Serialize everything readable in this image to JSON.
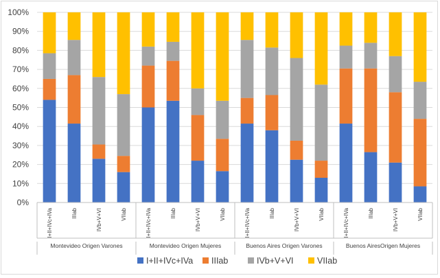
{
  "chart_data": {
    "type": "bar",
    "stacked": "percent",
    "title": "",
    "xlabel": "",
    "ylabel": "",
    "ylim": [
      0,
      100
    ],
    "y_ticks": [
      "0%",
      "10%",
      "20%",
      "30%",
      "40%",
      "50%",
      "60%",
      "70%",
      "80%",
      "90%",
      "100%"
    ],
    "groups": [
      {
        "name": "Montevideo Origen Varones",
        "categories": [
          "I+II+IVc+IVa",
          "IIIab",
          "IVb+V+VI",
          "VIIab"
        ]
      },
      {
        "name": "Montevideo Origen Mujeres",
        "categories": [
          "I+II+IVc+IVa",
          "IIIab",
          "IVb+V+VI",
          "VIIab"
        ]
      },
      {
        "name": "Buenos Aires Origen Varones",
        "categories": [
          "I+II+IVc+IVa",
          "IIIab",
          "IVb+V+VI",
          "VIIab"
        ]
      },
      {
        "name": "Buenos AiresOrigen Mujeres",
        "categories": [
          "I+II+IVc+IVa",
          "IIIab",
          "IVb+V+VI",
          "VIIab"
        ]
      }
    ],
    "series": [
      {
        "name": "I+II+IVc+IVa",
        "color": "#4472C4",
        "values": [
          54,
          41.5,
          23,
          16,
          50,
          53.5,
          22,
          16.5,
          41.5,
          38,
          22.5,
          13,
          41.5,
          26.5,
          21,
          8.5
        ]
      },
      {
        "name": "IIIab",
        "color": "#ED7D31",
        "values": [
          11,
          25.5,
          7.5,
          8.5,
          22,
          21,
          24,
          17,
          13.5,
          18.5,
          10,
          9,
          29,
          44,
          37,
          35.5
        ]
      },
      {
        "name": "IVb+V+VI",
        "color": "#A5A5A5",
        "values": [
          13.5,
          18.5,
          35.5,
          32.5,
          10,
          10,
          14,
          20,
          30.5,
          25,
          43.5,
          40,
          12,
          13.5,
          19,
          19.5
        ]
      },
      {
        "name": "VIIab",
        "color": "#FFC000",
        "values": [
          21.5,
          14.5,
          34,
          43,
          18,
          15.5,
          40,
          46.5,
          14.5,
          18.5,
          24,
          38,
          17.5,
          16,
          23,
          36.5
        ]
      }
    ]
  }
}
